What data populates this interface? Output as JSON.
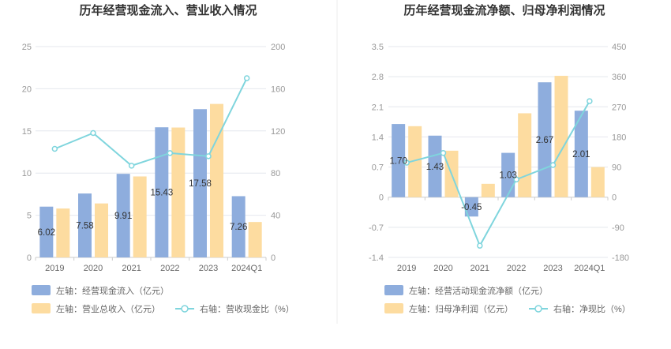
{
  "colors": {
    "bar_blue": "#8eaddd",
    "bar_orange": "#fddca0",
    "line": "#7fd5dd",
    "marker_fill": "#ffffff"
  },
  "chart_data": [
    {
      "type": "bar",
      "title": "历年经营现金流入、营业收入情况",
      "categories": [
        "2019",
        "2020",
        "2021",
        "2022",
        "2023",
        "2024Q1"
      ],
      "left_axis": {
        "ylim": [
          0,
          25
        ],
        "ticks": [
          "0",
          "5",
          "10",
          "15",
          "20",
          "25"
        ]
      },
      "right_axis": {
        "ylim": [
          0,
          200
        ],
        "ticks": [
          "0",
          "40",
          "80",
          "120",
          "160",
          "200"
        ]
      },
      "series": [
        {
          "name": "左轴：经营现金流入（亿元）",
          "axis": "left",
          "kind": "bar",
          "color": "#8eaddd",
          "values": [
            6.02,
            7.58,
            9.91,
            15.43,
            17.58,
            7.26
          ],
          "labels": [
            "6.02",
            "7.58",
            "9.91",
            "15.43",
            "17.58",
            "7.26"
          ]
        },
        {
          "name": "左轴：营业总收入（亿元）",
          "axis": "left",
          "kind": "bar",
          "color": "#fddca0",
          "values": [
            5.8,
            6.4,
            9.6,
            15.4,
            18.2,
            4.2
          ]
        },
        {
          "name": "右轴：营收现金比（%）",
          "axis": "right",
          "kind": "line",
          "color": "#7fd5dd",
          "values": [
            103,
            118,
            87,
            99,
            96,
            170
          ]
        }
      ]
    },
    {
      "type": "bar",
      "title": "历年经营现金流净额、归母净利润情况",
      "categories": [
        "2019",
        "2020",
        "2021",
        "2022",
        "2023",
        "2024Q1"
      ],
      "left_axis": {
        "ylim": [
          -1.4,
          3.5
        ],
        "ticks": [
          "-1.4",
          "-0.7",
          "0",
          "0.7",
          "1.4",
          "2.1",
          "2.8",
          "3.5"
        ]
      },
      "right_axis": {
        "ylim": [
          -180,
          450
        ],
        "ticks": [
          "-180",
          "-90",
          "0",
          "90",
          "180",
          "270",
          "360",
          "450"
        ]
      },
      "series": [
        {
          "name": "左轴：经营活动现金流净额（亿元）",
          "axis": "left",
          "kind": "bar",
          "color": "#8eaddd",
          "values": [
            1.7,
            1.43,
            -0.45,
            1.03,
            2.67,
            2.01
          ],
          "labels": [
            "1.70",
            "1.43",
            "-0.45",
            "1.03",
            "2.67",
            "2.01"
          ]
        },
        {
          "name": "左轴：归母净利润（亿元）",
          "axis": "left",
          "kind": "bar",
          "color": "#fddca0",
          "values": [
            1.65,
            1.08,
            0.31,
            1.95,
            2.82,
            0.7
          ]
        },
        {
          "name": "右轴：净现比（%）",
          "axis": "right",
          "kind": "line",
          "color": "#7fd5dd",
          "values": [
            103,
            132,
            -145,
            53,
            96,
            287
          ]
        }
      ]
    }
  ]
}
